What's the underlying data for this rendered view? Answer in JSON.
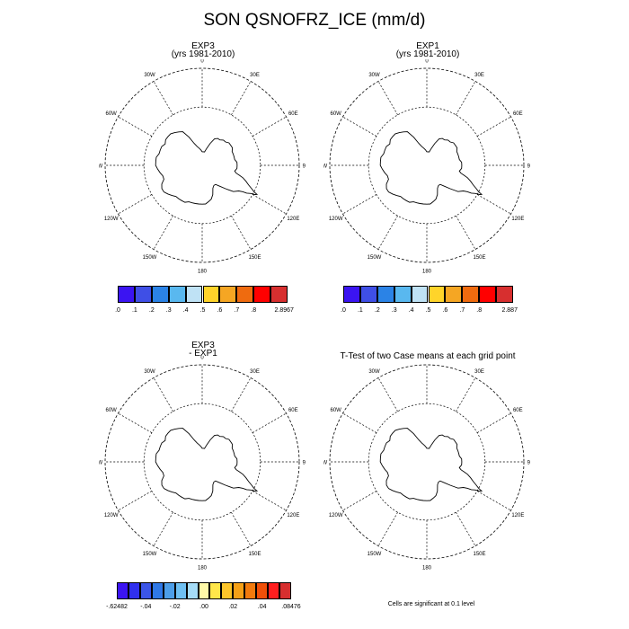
{
  "main_title": "SON QSNOFRZ_ICE (mm/d)",
  "panels": [
    {
      "id": "exp3",
      "title_line1": "EXP3",
      "title_line2": "(yrs 1981-2010)"
    },
    {
      "id": "exp1",
      "title_line1": "EXP1",
      "title_line2": "(yrs 1981-2010)"
    },
    {
      "id": "diff",
      "title_line1": "EXP3",
      "title_line2": "- EXP1"
    },
    {
      "id": "ttest",
      "title_line1": "T-Test of two Case means at each grid point",
      "title_line2": ""
    }
  ],
  "longitude_labels": [
    "0",
    "30E",
    "60E",
    "90E",
    "120E",
    "150E",
    "180",
    "150W",
    "120W",
    "90W",
    "60W",
    "30W"
  ],
  "colorbars": {
    "exp3": {
      "colors": [
        "#3b14f2",
        "#3f4fe6",
        "#2b83e6",
        "#59b8ef",
        "#bfe2f5",
        "#ffd42a",
        "#f5a623",
        "#ef6b0f",
        "#ff0000",
        "#d72f2f"
      ],
      "labels": [
        ".0",
        ".1",
        ".2",
        ".3",
        ".4",
        ".5",
        ".6",
        ".7",
        ".8",
        "2.8967"
      ]
    },
    "exp1": {
      "colors": [
        "#3b14f2",
        "#3f4fe6",
        "#2b83e6",
        "#59b8ef",
        "#bfe2f5",
        "#ffd42a",
        "#f5a623",
        "#ef6b0f",
        "#ff0000",
        "#d72f2f"
      ],
      "labels": [
        ".0",
        ".1",
        ".2",
        ".3",
        ".4",
        ".5",
        ".6",
        ".7",
        ".8",
        "2.887"
      ]
    },
    "diff": {
      "colors": [
        "#3b14f2",
        "#3030ee",
        "#3b55e8",
        "#2f78e6",
        "#4d9ee8",
        "#6fc0f2",
        "#a6dcf7",
        "#fff9a8",
        "#ffe64a",
        "#fcc52a",
        "#f5a017",
        "#f27a0d",
        "#f04f08",
        "#ff1f1f",
        "#d72f2f"
      ],
      "labels": [
        "-.62482",
        "-.04",
        "-.02",
        ".00",
        ".02",
        ".04",
        ".08476"
      ]
    }
  },
  "note": "Cells are significant at 0.1 level"
}
